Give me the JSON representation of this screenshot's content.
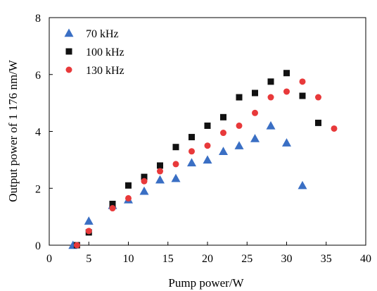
{
  "chart_data": {
    "type": "scatter",
    "xlabel": "Pump power/W",
    "ylabel": "Output power of 1 176 nm/W",
    "xlim": [
      0,
      40
    ],
    "ylim": [
      0,
      8
    ],
    "xticks": [
      "0",
      "5",
      "10",
      "15",
      "20",
      "25",
      "30",
      "35",
      "40"
    ],
    "yticks": [
      "0",
      "2",
      "4",
      "6",
      "8"
    ],
    "grid": false,
    "legend_position": "top-left",
    "series": [
      {
        "name": "70 kHz",
        "marker": "triangle",
        "color": "#3a6fc4",
        "x": [
          3.0,
          5.0,
          8.0,
          10.0,
          12.0,
          14.0,
          16.0,
          18.0,
          20.0,
          22.0,
          24.0,
          26.0,
          28.0,
          30.0,
          32.0
        ],
        "y": [
          0.0,
          0.85,
          1.4,
          1.6,
          1.9,
          2.3,
          2.35,
          2.9,
          3.0,
          3.3,
          3.5,
          3.75,
          4.2,
          3.6,
          2.1
        ]
      },
      {
        "name": "100 kHz",
        "marker": "square",
        "color": "#111111",
        "x": [
          3.5,
          5.0,
          8.0,
          10.0,
          12.0,
          14.0,
          16.0,
          18.0,
          20.0,
          22.0,
          24.0,
          26.0,
          28.0,
          30.0,
          32.0,
          34.0
        ],
        "y": [
          0.0,
          0.45,
          1.45,
          2.1,
          2.4,
          2.8,
          3.45,
          3.8,
          4.2,
          4.5,
          5.2,
          5.35,
          5.75,
          6.05,
          5.25,
          4.3
        ]
      },
      {
        "name": "130 kHz",
        "marker": "circle",
        "color": "#e8393a",
        "x": [
          3.5,
          5.0,
          8.0,
          10.0,
          12.0,
          14.0,
          16.0,
          18.0,
          20.0,
          22.0,
          24.0,
          26.0,
          28.0,
          30.0,
          32.0,
          34.0,
          36.0
        ],
        "y": [
          0.0,
          0.5,
          1.3,
          1.65,
          2.25,
          2.6,
          2.85,
          3.3,
          3.5,
          3.95,
          4.2,
          4.65,
          5.2,
          5.4,
          5.75,
          5.2,
          4.1
        ]
      }
    ]
  }
}
